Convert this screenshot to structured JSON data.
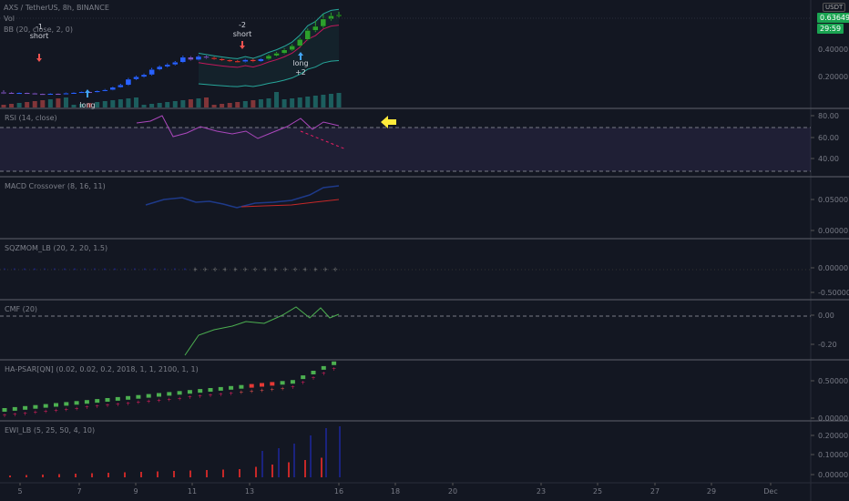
{
  "header": {
    "symbol": "AXS / TetherUS, 8h, BINANCE",
    "vol": "Vol",
    "bb": "BB (20, close, 2, 0)",
    "currency": "USDT"
  },
  "price_badges": {
    "last": "0.63649",
    "countdown": "29:59"
  },
  "colors": {
    "up": "#26a69a",
    "down": "#ef5350",
    "badge_green": "#1aa351",
    "bg": "#131722"
  },
  "annotations": [
    {
      "id": "a1",
      "lines": [
        "-1",
        "short"
      ],
      "arrow": "down"
    },
    {
      "id": "a2",
      "lines": [
        "long"
      ],
      "arrow": "up"
    },
    {
      "id": "a3",
      "lines": [
        "-2",
        "short"
      ],
      "arrow": "down"
    },
    {
      "id": "a4",
      "lines": [
        "long",
        "+2"
      ],
      "arrow": "up"
    }
  ],
  "panes": [
    {
      "id": "rsi",
      "title": "RSI (14, close)",
      "ticks": [
        "80.00",
        "60.00",
        "40.00"
      ]
    },
    {
      "id": "macd",
      "title": "MACD Crossover (8, 16, 11)",
      "ticks": [
        "0.05000",
        "0.00000"
      ]
    },
    {
      "id": "sqz",
      "title": "SQZMOM_LB (20, 2, 20, 1.5)",
      "ticks": [
        "0.00000",
        "-0.50000"
      ]
    },
    {
      "id": "cmf",
      "title": "CMF (20)",
      "ticks": [
        "0.00",
        "-0.20"
      ]
    },
    {
      "id": "psar",
      "title": "HA-PSAR[QN] (0.02, 0.02, 0.2, 2018, 1, 1, 2100, 1, 1)",
      "ticks": [
        "0.50000",
        "0.00000"
      ]
    },
    {
      "id": "ewi",
      "title": "EWI_LB (5, 25, 50, 4, 10)",
      "ticks": [
        "0.20000",
        "0.10000",
        "0.00000"
      ]
    }
  ],
  "main_ticks": [
    "0.40000",
    "0.20000"
  ],
  "xaxis": [
    "5",
    "7",
    "9",
    "11",
    "13",
    "16",
    "18",
    "20",
    "23",
    "25",
    "27",
    "29",
    "Dec"
  ],
  "chart_data": {
    "type": "candlestick",
    "timeframe": "8h",
    "candles": [
      [
        0.16,
        0.158,
        0.172,
        0.15
      ],
      [
        0.158,
        0.155,
        0.162,
        0.152
      ],
      [
        0.155,
        0.157,
        0.16,
        0.153
      ],
      [
        0.157,
        0.154,
        0.159,
        0.152
      ],
      [
        0.154,
        0.151,
        0.157,
        0.148
      ],
      [
        0.151,
        0.149,
        0.153,
        0.146
      ],
      [
        0.149,
        0.152,
        0.155,
        0.147
      ],
      [
        0.152,
        0.15,
        0.154,
        0.148
      ],
      [
        0.15,
        0.155,
        0.158,
        0.149
      ],
      [
        0.155,
        0.158,
        0.161,
        0.153
      ],
      [
        0.158,
        0.163,
        0.166,
        0.156
      ],
      [
        0.163,
        0.16,
        0.166,
        0.158
      ],
      [
        0.16,
        0.168,
        0.172,
        0.158
      ],
      [
        0.168,
        0.175,
        0.18,
        0.166
      ],
      [
        0.175,
        0.19,
        0.195,
        0.172
      ],
      [
        0.19,
        0.205,
        0.212,
        0.188
      ],
      [
        0.205,
        0.24,
        0.248,
        0.2
      ],
      [
        0.24,
        0.255,
        0.262,
        0.235
      ],
      [
        0.255,
        0.268,
        0.275,
        0.25
      ],
      [
        0.268,
        0.3,
        0.31,
        0.262
      ],
      [
        0.3,
        0.318,
        0.325,
        0.295
      ],
      [
        0.318,
        0.33,
        0.338,
        0.312
      ],
      [
        0.33,
        0.345,
        0.352,
        0.325
      ],
      [
        0.345,
        0.375,
        0.385,
        0.34
      ],
      [
        0.375,
        0.36,
        0.382,
        0.355
      ],
      [
        0.36,
        0.38,
        0.388,
        0.356
      ],
      [
        0.38,
        0.372,
        0.386,
        0.366
      ],
      [
        0.372,
        0.365,
        0.378,
        0.36
      ],
      [
        0.365,
        0.358,
        0.37,
        0.352
      ],
      [
        0.358,
        0.352,
        0.362,
        0.346
      ],
      [
        0.352,
        0.348,
        0.358,
        0.343
      ],
      [
        0.348,
        0.36,
        0.365,
        0.344
      ],
      [
        0.36,
        0.35,
        0.366,
        0.345
      ],
      [
        0.35,
        0.365,
        0.37,
        0.347
      ],
      [
        0.365,
        0.385,
        0.392,
        0.36
      ],
      [
        0.385,
        0.4,
        0.408,
        0.38
      ],
      [
        0.4,
        0.42,
        0.43,
        0.395
      ],
      [
        0.42,
        0.445,
        0.455,
        0.415
      ],
      [
        0.445,
        0.485,
        0.495,
        0.44
      ],
      [
        0.485,
        0.54,
        0.552,
        0.478
      ],
      [
        0.54,
        0.565,
        0.6,
        0.53
      ],
      [
        0.565,
        0.61,
        0.64,
        0.555
      ],
      [
        0.61,
        0.63,
        0.65,
        0.6
      ],
      [
        0.63,
        0.636,
        0.655,
        0.62
      ]
    ]
  }
}
